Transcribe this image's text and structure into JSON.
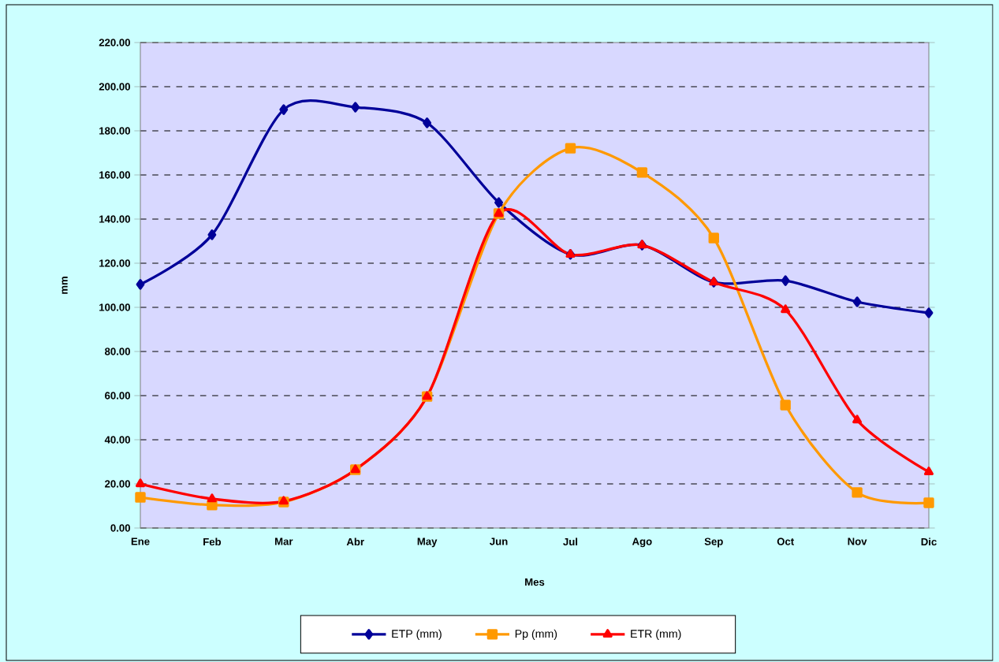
{
  "chart_data": {
    "type": "line",
    "xlabel": "Mes",
    "ylabel": "mm",
    "categories": [
      "Ene",
      "Feb",
      "Mar",
      "Abr",
      "May",
      "Jun",
      "Jul",
      "Ago",
      "Sep",
      "Oct",
      "Nov",
      "Dic"
    ],
    "series": [
      {
        "name": "ETP (mm)",
        "color": "#000099",
        "marker": "diamond",
        "values": [
          110.4,
          132.9,
          189.6,
          190.7,
          183.6,
          147.5,
          124.0,
          128.2,
          111.4,
          112.1,
          102.5,
          97.5
        ]
      },
      {
        "name": "Pp (mm)",
        "color": "#ff9900",
        "marker": "square",
        "values": [
          13.9,
          10.4,
          11.8,
          26.4,
          59.6,
          142.5,
          172.1,
          161.1,
          131.4,
          55.7,
          16.1,
          11.4
        ]
      },
      {
        "name": "ETR (mm)",
        "color": "#ff0000",
        "marker": "triangle",
        "values": [
          20.0,
          13.2,
          12.1,
          26.4,
          59.6,
          142.5,
          124.0,
          128.2,
          111.4,
          98.9,
          48.9,
          25.4
        ]
      }
    ],
    "ylim": [
      0,
      220
    ],
    "yticks": [
      {
        "value": 0,
        "label": "0.00"
      },
      {
        "value": 20,
        "label": "20.00"
      },
      {
        "value": 40,
        "label": "40.00"
      },
      {
        "value": 60,
        "label": "60.00"
      },
      {
        "value": 80,
        "label": "80.00"
      },
      {
        "value": 100,
        "label": "100.00"
      },
      {
        "value": 120,
        "label": "120.00"
      },
      {
        "value": 140,
        "label": "140.00"
      },
      {
        "value": 160,
        "label": "160.00"
      },
      {
        "value": 180,
        "label": "180.00"
      },
      {
        "value": 200,
        "label": "200.00"
      },
      {
        "value": 220,
        "label": "220.00"
      }
    ],
    "grid": "y",
    "legend": "bottom",
    "line_style": "solid"
  }
}
